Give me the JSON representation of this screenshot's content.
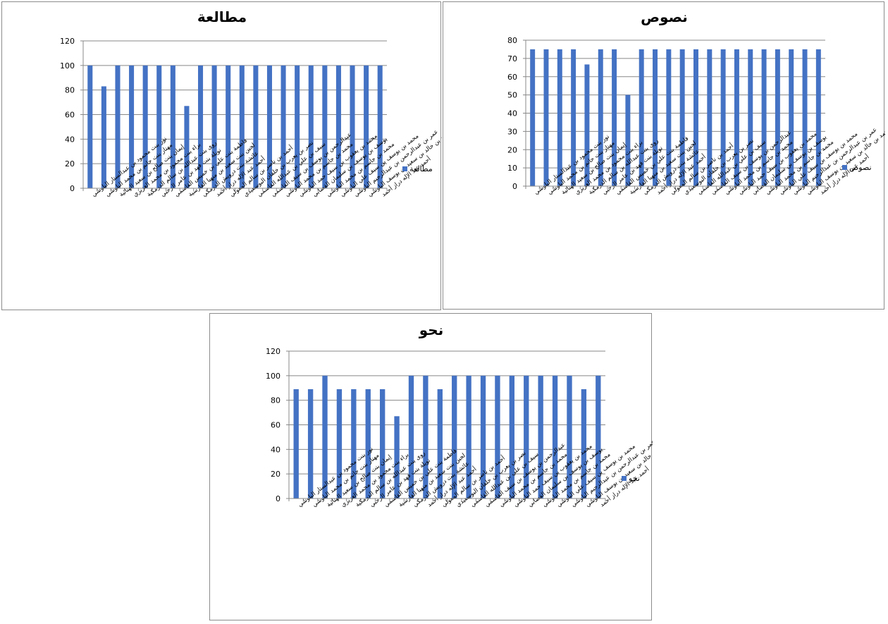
{
  "chart_data": [
    {
      "type": "bar",
      "title": "مطالعة",
      "legend": "مطالعة",
      "legend_position": "right",
      "color": "#4472c4",
      "ylim": [
        0,
        120
      ],
      "yticks": [
        0,
        20,
        40,
        60,
        80,
        100,
        120
      ],
      "grid": true,
      "categories": [
        "نور بنت محمود بن عبدالستار البلوشي",
        "مهناز بنت حاتم بن محمد البلوشي",
        "إيمان بنت صالح بن سعيد الهنائية",
        "براء بنت محمود بن محمد الغزيري",
        "روى بنت عبدالله بن سالم الدرمكية",
        "نويلة بنت فهد بن عامر الرحبي",
        "فاطمة بنت علي بن خميس القاسمي",
        "لجين بنت سعيد بن منهيا الفارسية",
        "عائشة بنت درويش الدرمكي",
        "أحمد عبد الإله دراز أحمد",
        "أحمد بن ناصر بن سالم المعولي",
        "نصر بن يعرب بن خلفان البوسعيدي",
        "سيف بن علي بن عبدالله القاسمي",
        "عبدالرحمن بن يوسف بن سيف القاسمي",
        "محمد بن جاسم بن محمد البلوشي",
        "محمد بن يعقوب بن سيف حمد البلوشي",
        "يوسف بن يوسف بن سليمان القصابي",
        "محمد بن جاسم بن محمد البلوشي",
        "محمد بن يوسف بن سيف علي البلوشي",
        "عمر بن عبدالرحمن بن عبدالرحيم البلوشي",
        "حمد بن خالد بن سعيد بن يوسف البلوشي",
        "أحمد عبد الإله دراز أحمد"
      ],
      "values": [
        100,
        83,
        100,
        100,
        100,
        100,
        100,
        67,
        100,
        100,
        100,
        100,
        100,
        100,
        100,
        100,
        100,
        100,
        100,
        100,
        100,
        100
      ]
    },
    {
      "type": "bar",
      "title": "نصوص",
      "legend": "نصوص",
      "legend_position": "right",
      "color": "#4472c4",
      "ylim": [
        0,
        80
      ],
      "yticks": [
        0,
        10,
        20,
        30,
        40,
        50,
        60,
        70,
        80
      ],
      "grid": true,
      "categories": [
        "نور بنت محمود بن عبدالستار البلوشي",
        "مهناز بنت حاتم بن محمد البلوشي",
        "إيمان بنت صالح بن سعيد الهنائية",
        "براء بنت محمود بن محمد الغزيري",
        "روى بنت عبدالله بن سالم الدرمكية",
        "نويلة بنت فهد بن عامر الرحبي",
        "فاطمة بنت علي بن خميس القاسمي",
        "لجين بنت سعيد بن منهيا الفارسية",
        "عائشة بنت درويش الدرمكي",
        "أحمد عبد الإله دراز أحمد",
        "أحمد بن ناصر بن سالم المعولي",
        "نصر بن يعرب بن خلفان البوسعيدي",
        "سيف بن علي بن عبدالله القاسمي",
        "عبدالرحمن بن يوسف بن سيف القاسمي",
        "محمد بن جاسم بن محمد البلوشي",
        "محمد بن يعقوب بن سيف حمد البلوشي",
        "يوسف بن يوسف بن سليمان القصابي",
        "محمد بن جاسم بن محمد البلوشي",
        "محمد بن يوسف بن سيف علي البلوشي",
        "عمر بن عبدالرحمن بن عبدالرحيم البلوشي",
        "حمد بن خالد بن سعيد بن يوسف البلوشي",
        "أحمد عبد الإله دراز أحمد"
      ],
      "values": [
        75,
        75,
        75,
        75,
        66.7,
        75,
        75,
        50,
        75,
        75,
        75,
        75,
        75,
        75,
        75,
        75,
        75,
        75,
        75,
        75,
        75,
        75
      ]
    },
    {
      "type": "bar",
      "title": "نحو",
      "legend": "نحو",
      "legend_position": "right",
      "color": "#4472c4",
      "ylim": [
        0,
        120
      ],
      "yticks": [
        0,
        20,
        40,
        60,
        80,
        100,
        120
      ],
      "grid": true,
      "categories": [
        "نور بنت محمود بن عبدالستار البلوشي",
        "مهناز بنت حاتم بن محمد البلوشي",
        "إيمان بنت صالح بن سعيد الهنائية",
        "براء بنت محمود بن محمد الغزيري",
        "روى بنت عبدالله بن سالم الدرمكية",
        "نويلة بنت فهد بن عامر الرحبي",
        "فاطمة بنت علي بن خميس القاسمي",
        "لجين بنت سعيد بن منهيا الفارسية",
        "عائشة بنت درويش الدرمكي",
        "أحمد عبد الإله دراز أحمد",
        "أحمد بن ناصر بن سالم المعولي",
        "نصر بن يعرب بن خلفان البوسعيدي",
        "سيف بن علي بن عبدالله القاسمي",
        "عبدالرحمن بن يوسف بن سيف القاسمي",
        "محمد بن جاسم بن محمد البلوشي",
        "محمد بن يعقوب بن سيف حمد البلوشي",
        "يوسف بن يوسف بن سليمان القصابي",
        "محمد بن جاسم بن محمد البلوشي",
        "محمد بن يوسف بن سيف علي البلوشي",
        "عمر بن عبدالرحمن بن عبدالرحيم البلوشي",
        "حمد بن خالد بن سعيد بن يوسف البلوشي",
        "أحمد عبد الإله دراز أحمد"
      ],
      "values": [
        89,
        89,
        100,
        89,
        89,
        89,
        89,
        67,
        100,
        100,
        89,
        100,
        100,
        100,
        100,
        100,
        100,
        100,
        100,
        100,
        89,
        100
      ]
    }
  ]
}
